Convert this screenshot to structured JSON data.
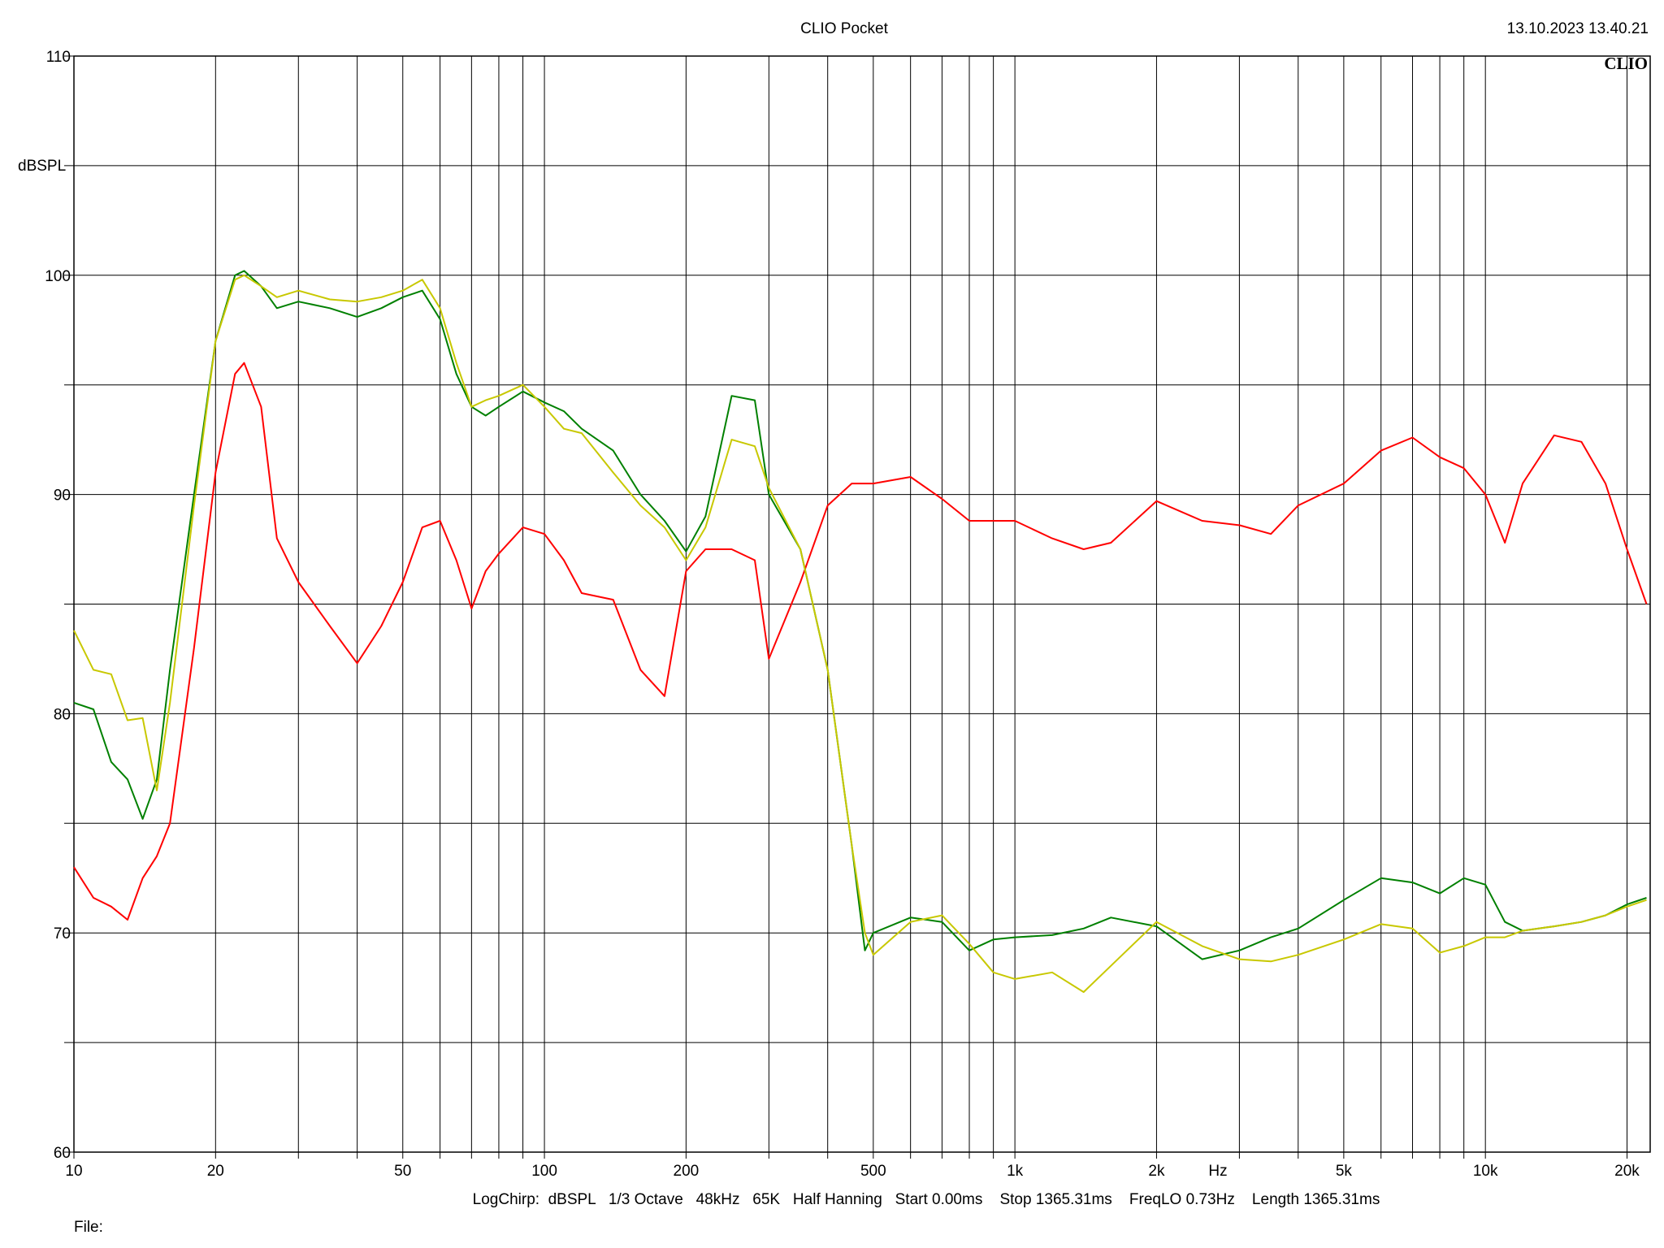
{
  "chart_data": {
    "type": "line",
    "title": "CLIO Pocket",
    "timestamp": "13.10.2023 13.40.21",
    "logo": "CLIO",
    "y_label": "dBSPL",
    "x_label": "Hz",
    "footer": "LogChirp:  dBSPL   1/3 Octave   48kHz   65K   Half Hanning   Start 0.00ms    Stop 1365.31ms    FreqLO 0.73Hz    Length 1365.31ms",
    "file_label": "File:",
    "x_scale": "log",
    "grid": true,
    "xlim": [
      10,
      22400
    ],
    "ylim": [
      60,
      110
    ],
    "xticks": [
      10,
      20,
      50,
      100,
      200,
      500,
      {
        "value": 1000,
        "label": "1k"
      },
      {
        "value": 2000,
        "label": "2k"
      },
      {
        "value": 5000,
        "label": "5k"
      },
      {
        "value": 10000,
        "label": "10k"
      },
      {
        "value": 20000,
        "label": "20k"
      }
    ],
    "xminor": [
      30,
      40,
      60,
      70,
      80,
      90,
      300,
      400,
      600,
      700,
      800,
      900,
      3000,
      4000,
      6000,
      7000,
      8000,
      9000
    ],
    "yticks": [
      60,
      70,
      80,
      90,
      100,
      110
    ],
    "yminor": [
      65,
      75,
      85,
      95,
      105
    ],
    "x": [
      10,
      11,
      12,
      13,
      14,
      15,
      16,
      18,
      20,
      22,
      23,
      25,
      27,
      30,
      35,
      40,
      45,
      50,
      55,
      60,
      65,
      70,
      75,
      80,
      90,
      100,
      110,
      120,
      140,
      160,
      180,
      200,
      220,
      250,
      280,
      300,
      350,
      400,
      450,
      480,
      500,
      600,
      700,
      800,
      900,
      1000,
      1200,
      1400,
      1600,
      2000,
      2500,
      3000,
      3500,
      4000,
      5000,
      6000,
      7000,
      8000,
      9000,
      10000,
      11000,
      12000,
      14000,
      16000,
      18000,
      20000,
      22000
    ],
    "series": [
      {
        "color": "#ff0000",
        "values": [
          73,
          71.6,
          71.2,
          70.6,
          72.5,
          73.5,
          75,
          83,
          91,
          95.5,
          96,
          94,
          88,
          86,
          84,
          82.3,
          84,
          86,
          88.5,
          88.8,
          87,
          84.8,
          86.5,
          87.3,
          88.5,
          88.2,
          87,
          85.5,
          85.2,
          82,
          80.8,
          86.5,
          87.5,
          87.5,
          87,
          82.5,
          86,
          89.5,
          90.5,
          90.5,
          90.5,
          90.8,
          89.8,
          88.8,
          88.8,
          88.8,
          88,
          87.5,
          87.8,
          89.7,
          88.8,
          88.6,
          88.2,
          89.5,
          90.5,
          92,
          92.6,
          91.7,
          91.2,
          90,
          87.8,
          90.5,
          92.7,
          92.4,
          90.5,
          87.5,
          85
        ]
      },
      {
        "color": "#008000",
        "values": [
          80.5,
          80.2,
          77.8,
          77,
          75.2,
          77,
          82,
          90,
          97,
          100,
          100.2,
          99.5,
          98.5,
          98.8,
          98.5,
          98.1,
          98.5,
          99,
          99.3,
          98,
          95.5,
          94,
          93.6,
          94,
          94.7,
          94.2,
          93.8,
          93,
          92,
          90,
          88.8,
          87.4,
          89,
          94.5,
          94.3,
          90,
          87.5,
          82,
          74,
          69.2,
          70,
          70.7,
          70.5,
          69.2,
          69.7,
          69.8,
          69.9,
          70.2,
          70.7,
          70.3,
          68.8,
          69.2,
          69.8,
          70.2,
          71.5,
          72.5,
          72.3,
          71.8,
          72.5,
          72.2,
          70.5,
          70.1,
          70.3,
          70.5,
          70.8,
          71.3,
          71.6
        ]
      },
      {
        "color": "#c8c800",
        "values": [
          83.8,
          82,
          81.8,
          79.7,
          79.8,
          76.5,
          80.5,
          89.5,
          97,
          99.8,
          100,
          99.5,
          99,
          99.3,
          98.9,
          98.8,
          99,
          99.3,
          99.8,
          98.5,
          96,
          94,
          94.3,
          94.5,
          95,
          94,
          93,
          92.8,
          91,
          89.5,
          88.5,
          87,
          88.5,
          92.5,
          92.2,
          90.3,
          87.5,
          82,
          74,
          70,
          69,
          70.5,
          70.8,
          69.5,
          68.2,
          67.9,
          68.2,
          67.3,
          68.5,
          70.5,
          69.4,
          68.8,
          68.7,
          69,
          69.7,
          70.4,
          70.2,
          69.1,
          69.4,
          69.8,
          69.8,
          70.1,
          70.3,
          70.5,
          70.8,
          71.2,
          71.5
        ]
      }
    ]
  }
}
